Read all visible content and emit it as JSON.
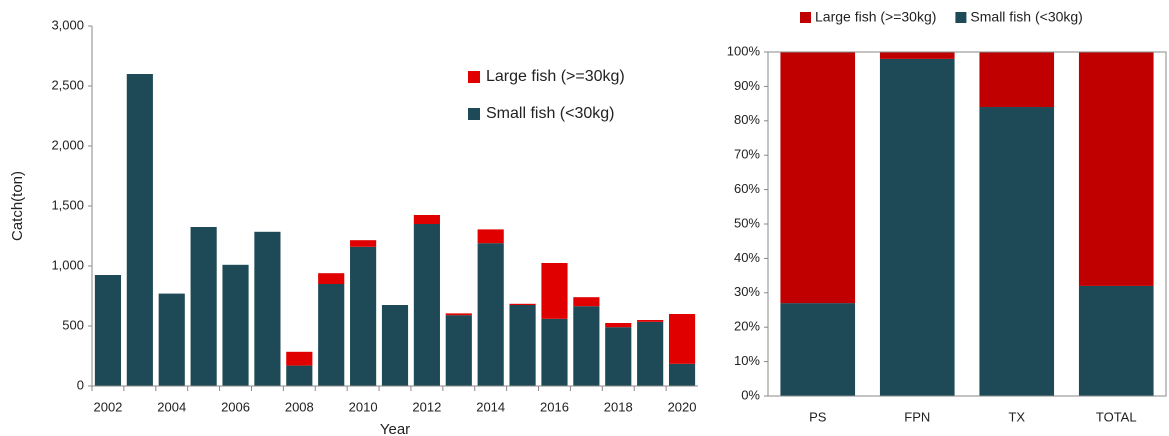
{
  "chart_data": [
    {
      "type": "bar",
      "stacked": true,
      "ylabel": "Catch(ton)",
      "xlabel": "Year",
      "categories": [
        "2002",
        null,
        "2004",
        null,
        "2006",
        null,
        "2008",
        null,
        "2010",
        null,
        "2012",
        null,
        "2014",
        null,
        "2016",
        null,
        "2018",
        null,
        "2020"
      ],
      "series": [
        {
          "name": "Small fish (<30kg)",
          "color": "#1d4a56",
          "values": [
            925,
            2600,
            770,
            1325,
            1010,
            1285,
            170,
            850,
            1160,
            675,
            1350,
            590,
            1190,
            675,
            560,
            665,
            490,
            535,
            185
          ]
        },
        {
          "name": "Large fish (>=30kg)",
          "color": "#e00000",
          "values": [
            0,
            0,
            0,
            0,
            0,
            0,
            115,
            90,
            55,
            0,
            75,
            15,
            115,
            10,
            465,
            75,
            35,
            15,
            415
          ]
        }
      ],
      "ylim": [
        0,
        3000
      ],
      "yticks": [
        0,
        500,
        {
          "value": 1000,
          "label": "1,000"
        },
        {
          "value": 1500,
          "label": "1,500"
        },
        {
          "value": 2000,
          "label": "2,000"
        },
        {
          "value": 2500,
          "label": "2,500"
        },
        {
          "value": 3000,
          "label": "3,000"
        }
      ],
      "legend": "upper right"
    },
    {
      "type": "bar",
      "stacked": true,
      "categories": [
        "PS",
        "FPN",
        "TX",
        "TOTAL"
      ],
      "series": [
        {
          "name": "Small fish (<30kg)",
          "color": "#1d4a56",
          "values": [
            27,
            98,
            84,
            32
          ]
        },
        {
          "name": "Large fish (>=30kg)",
          "color": "#c00000",
          "values": [
            73,
            2,
            16,
            68
          ]
        }
      ],
      "ylim": [
        0,
        100
      ],
      "yticks": [
        {
          "value": 0,
          "label": "0%"
        },
        {
          "value": 10,
          "label": "10%"
        },
        {
          "value": 20,
          "label": "20%"
        },
        {
          "value": 30,
          "label": "30%"
        },
        {
          "value": 40,
          "label": "40%"
        },
        {
          "value": 50,
          "label": "50%"
        },
        {
          "value": 60,
          "label": "60%"
        },
        {
          "value": 70,
          "label": "70%"
        },
        {
          "value": 80,
          "label": "80%"
        },
        {
          "value": 90,
          "label": "90%"
        },
        {
          "value": 100,
          "label": "100%"
        }
      ],
      "legend": "top"
    }
  ]
}
